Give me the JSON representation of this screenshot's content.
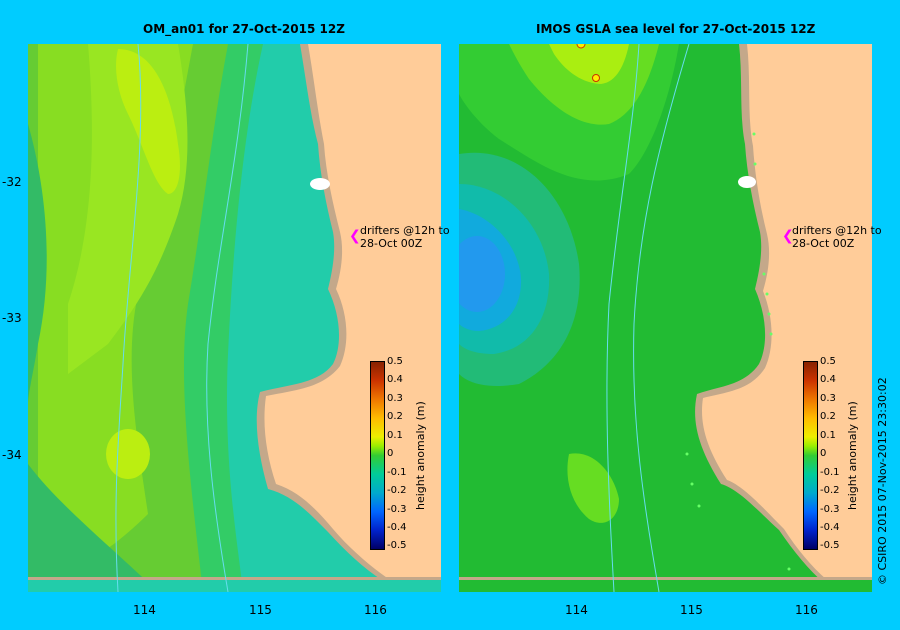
{
  "panels": [
    {
      "title": "OM_an01  for 27-Oct-2015 12Z"
    },
    {
      "title": "IMOS GSLA sea level  for 27-Oct-2015 12Z"
    }
  ],
  "annotation": {
    "line1": "drifters @12h to",
    "line2": "28-Oct 00Z"
  },
  "yticks": [
    "-32",
    "-33",
    "-34"
  ],
  "xticks": [
    "114",
    "115",
    "116"
  ],
  "colorbar": {
    "label": "height anomaly (m)",
    "ticks": [
      "0.5",
      "0.4",
      "0.3",
      "0.2",
      "0.1",
      "0",
      "-0.1",
      "-0.2",
      "-0.3",
      "-0.4",
      "-0.5"
    ]
  },
  "credit": "© CSIRO 2015   07-Nov-2015 23:30:02",
  "colors": {
    "background": "#00ccff",
    "land": "#ffcc99",
    "coast": "#c4a88a",
    "drifter_arrow": "#ff00ff"
  }
}
